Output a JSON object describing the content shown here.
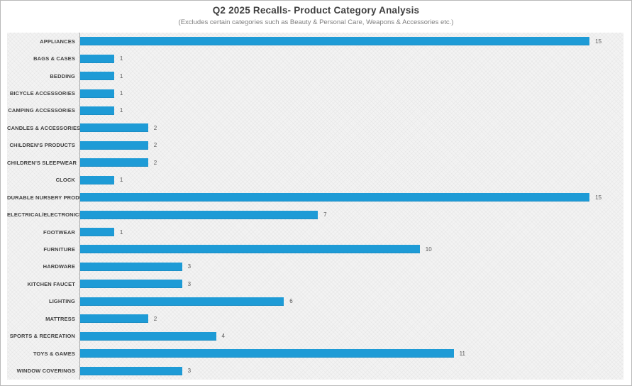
{
  "title": "Q2 2025 Recalls- Product Category Analysis",
  "subtitle": "(Excludes certain categories such as Beauty & Personal Care, Weapons & Accessories etc.)",
  "colors": {
    "bar": "#1e9bd6",
    "axis_line": "#a6a6a6",
    "category_label": "#404040",
    "value_label": "#595959",
    "title": "#3f3f3f",
    "subtitle": "#7f7f7f",
    "panel_background": "#f3f3f3",
    "border": "#b9b9b9"
  },
  "chart_data": {
    "type": "bar",
    "orientation": "horizontal",
    "title": "Q2 2025 Recalls- Product Category Analysis",
    "subtitle": "(Excludes certain categories such as Beauty & Personal Care, Weapons & Accessories etc.)",
    "categories": [
      "APPLIANCES",
      "BAGS & CASES",
      "BEDDING",
      "BICYCLE ACCESSORIES",
      "CAMPING ACCESSORIES",
      "CANDLES & ACCESSORIES",
      "CHILDREN'S PRODUCTS",
      "CHILDREN'S SLEEPWEAR",
      "CLOCK",
      "DURABLE NURSERY PRODUCT",
      "ELECTRICAL/ELECTRONICS",
      "FOOTWEAR",
      "FURNITURE",
      "HARDWARE",
      "KITCHEN FAUCET",
      "LIGHTING",
      "MATTRESS",
      "SPORTS & RECREATION",
      "TOYS & GAMES",
      "WINDOW COVERINGS"
    ],
    "values": [
      15,
      1,
      1,
      1,
      1,
      2,
      2,
      2,
      1,
      15,
      7,
      1,
      10,
      3,
      3,
      6,
      2,
      4,
      11,
      3
    ],
    "xlabel": "",
    "ylabel": "",
    "xlim": [
      0,
      16
    ],
    "grid": false,
    "legend": false,
    "value_labels": true
  }
}
